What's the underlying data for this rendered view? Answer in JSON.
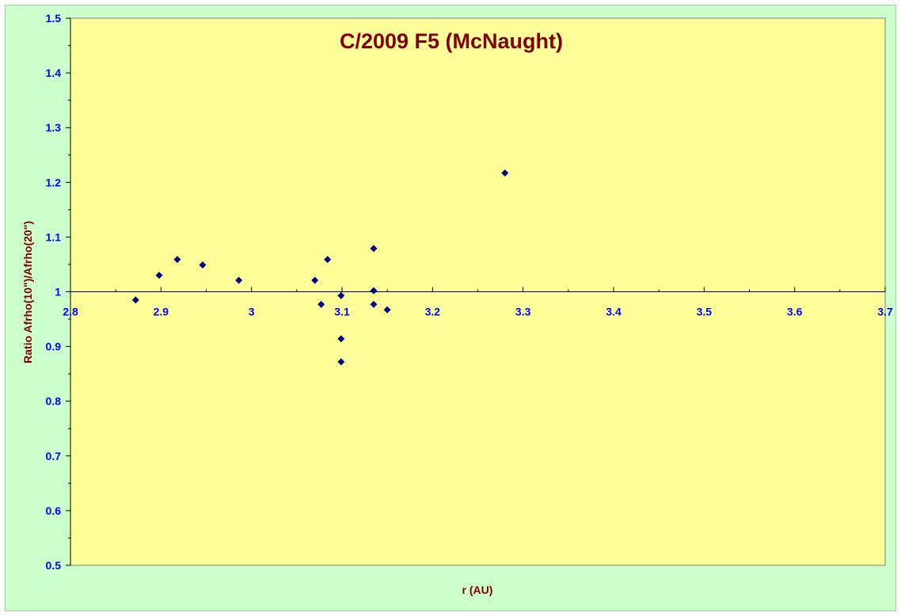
{
  "chart_data": {
    "type": "scatter",
    "title": "C/2009 F5 (McNaught)",
    "xlabel": "r (AU)",
    "ylabel": "Ratio Afrho(10\")/Afrho(20\")",
    "xlim": [
      2.8,
      3.7
    ],
    "ylim": [
      0.5,
      1.5
    ],
    "x_ticks": [
      "2.8",
      "2.9",
      "3",
      "3.1",
      "3.2",
      "3.3",
      "3.4",
      "3.5",
      "3.6",
      "3.7"
    ],
    "y_ticks": [
      "0.5",
      "0.6",
      "0.7",
      "0.8",
      "0.9",
      "1",
      "1.1",
      "1.2",
      "1.3",
      "1.4",
      "1.5"
    ],
    "x_axis_crosses_at": 1.0,
    "grid": false,
    "legend": "none",
    "colors": {
      "plot_area": "#ffff99",
      "chart_area": "#ccffcc",
      "marker": "#000080",
      "title": "#800000",
      "tick_labels": "#0000ff"
    },
    "series": [
      {
        "marker": "diamond",
        "points": [
          {
            "x": 2.872,
            "y": 0.985
          },
          {
            "x": 2.898,
            "y": 1.03
          },
          {
            "x": 2.918,
            "y": 1.059
          },
          {
            "x": 2.946,
            "y": 1.049
          },
          {
            "x": 2.986,
            "y": 1.021
          },
          {
            "x": 3.07,
            "y": 1.021
          },
          {
            "x": 3.077,
            "y": 0.977
          },
          {
            "x": 3.084,
            "y": 1.059
          },
          {
            "x": 3.099,
            "y": 0.993
          },
          {
            "x": 3.099,
            "y": 0.914
          },
          {
            "x": 3.099,
            "y": 0.872
          },
          {
            "x": 3.135,
            "y": 1.079
          },
          {
            "x": 3.135,
            "y": 1.002
          },
          {
            "x": 3.135,
            "y": 0.977
          },
          {
            "x": 3.15,
            "y": 0.967
          },
          {
            "x": 3.28,
            "y": 1.217
          }
        ]
      }
    ]
  }
}
